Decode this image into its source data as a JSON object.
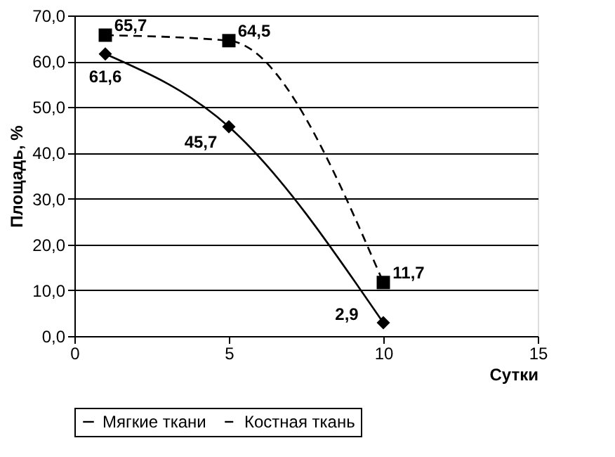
{
  "chart_data": {
    "type": "line",
    "xlabel": "Сутки",
    "ylabel": "Площадь, %",
    "xlim": [
      0,
      15
    ],
    "xticks": [
      0,
      5,
      10,
      15
    ],
    "ylim": [
      0,
      70
    ],
    "yticks": [
      {
        "value": 0,
        "label": "0,0"
      },
      {
        "value": 10,
        "label": "10,0"
      },
      {
        "value": 20,
        "label": "20,0"
      },
      {
        "value": 30,
        "label": "30,0"
      },
      {
        "value": 40,
        "label": "40,0"
      },
      {
        "value": 50,
        "label": "50,0"
      },
      {
        "value": 60,
        "label": "60,0"
      },
      {
        "value": 70,
        "label": "70,0"
      }
    ],
    "grid": "y",
    "legend": "bottom",
    "series": [
      {
        "name": "Мягкие ткани",
        "color": "#000000",
        "x": [
          1,
          5,
          10
        ],
        "values": [
          61.6,
          45.7,
          2.9
        ],
        "value_labels": [
          "61,6",
          "45,7",
          "2,9"
        ],
        "marker": "diamond",
        "line_style": "solid"
      },
      {
        "name": "Костная ткань",
        "color": "#000000",
        "x": [
          1,
          5,
          10
        ],
        "values": [
          65.7,
          64.5,
          11.7
        ],
        "value_labels": [
          "65,7",
          "64,5",
          "11,7"
        ],
        "marker": "square",
        "line_style": "dashed"
      }
    ]
  }
}
